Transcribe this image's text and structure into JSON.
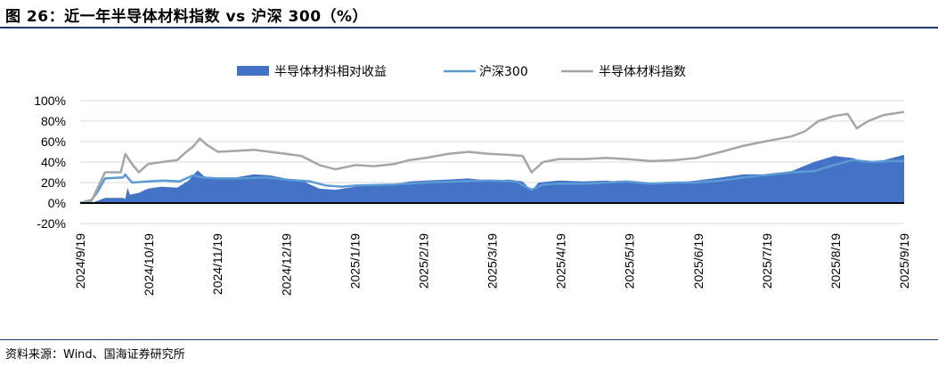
{
  "title": "图 26：近一年半导体材料指数 vs 沪深 300（%）",
  "source": "资料来源：Wind、国海证券研究所",
  "chart_data": {
    "type": "area+line",
    "yaxis": {
      "min": -20,
      "max": 100,
      "step": 20,
      "tick_labels": [
        "-20%",
        "0%",
        "20%",
        "40%",
        "60%",
        "80%",
        "100%"
      ]
    },
    "xaxis": {
      "start": "2024-09-19",
      "end": "2025-09-19",
      "tick_labels": [
        "2024/9/19",
        "2024/10/19",
        "2024/11/19",
        "2024/12/19",
        "2025/1/19",
        "2025/2/19",
        "2025/3/19",
        "2025/4/19",
        "2025/5/19",
        "2025/6/19",
        "2025/7/19",
        "2025/8/19",
        "2025/9/19"
      ]
    },
    "grid": true,
    "legend_position": "top",
    "series": [
      {
        "name": "半导体材料相对收益",
        "kind": "area",
        "color": "#4472c4",
        "points": [
          [
            "2024-09-19",
            0
          ],
          [
            "2024-09-24",
            0
          ],
          [
            "2024-09-30",
            5
          ],
          [
            "2024-10-08",
            5
          ],
          [
            "2024-10-09",
            4
          ],
          [
            "2024-10-10",
            15
          ],
          [
            "2024-10-11",
            8
          ],
          [
            "2024-10-15",
            10
          ],
          [
            "2024-10-19",
            14
          ],
          [
            "2024-10-25",
            16
          ],
          [
            "2024-11-01",
            15
          ],
          [
            "2024-11-06",
            22
          ],
          [
            "2024-11-10",
            32
          ],
          [
            "2024-11-13",
            26
          ],
          [
            "2024-11-19",
            24
          ],
          [
            "2024-11-27",
            25
          ],
          [
            "2024-12-05",
            28
          ],
          [
            "2024-12-12",
            27
          ],
          [
            "2024-12-19",
            24
          ],
          [
            "2024-12-26",
            22
          ],
          [
            "2025-01-03",
            14
          ],
          [
            "2025-01-10",
            13
          ],
          [
            "2025-01-19",
            16
          ],
          [
            "2025-01-27",
            18
          ],
          [
            "2025-02-05",
            18
          ],
          [
            "2025-02-12",
            21
          ],
          [
            "2025-02-19",
            22
          ],
          [
            "2025-03-01",
            23
          ],
          [
            "2025-03-10",
            24
          ],
          [
            "2025-03-19",
            22
          ],
          [
            "2025-03-28",
            23
          ],
          [
            "2025-04-03",
            21
          ],
          [
            "2025-04-07",
            12
          ],
          [
            "2025-04-10",
            20
          ],
          [
            "2025-04-19",
            22
          ],
          [
            "2025-04-30",
            21
          ],
          [
            "2025-05-10",
            22
          ],
          [
            "2025-05-19",
            20
          ],
          [
            "2025-05-30",
            19
          ],
          [
            "2025-06-10",
            20
          ],
          [
            "2025-06-19",
            22
          ],
          [
            "2025-06-30",
            25
          ],
          [
            "2025-07-10",
            28
          ],
          [
            "2025-07-19",
            28
          ],
          [
            "2025-07-31",
            31
          ],
          [
            "2025-08-10",
            40
          ],
          [
            "2025-08-19",
            46
          ],
          [
            "2025-08-27",
            44
          ],
          [
            "2025-09-02",
            40
          ],
          [
            "2025-09-10",
            42
          ],
          [
            "2025-09-19",
            47
          ]
        ]
      },
      {
        "name": "沪深300",
        "kind": "line",
        "color": "#5b9bd5",
        "points": [
          [
            "2024-09-19",
            0
          ],
          [
            "2024-09-24",
            3
          ],
          [
            "2024-09-27",
            12
          ],
          [
            "2024-09-30",
            24
          ],
          [
            "2024-10-08",
            25
          ],
          [
            "2024-10-09",
            28
          ],
          [
            "2024-10-10",
            25
          ],
          [
            "2024-10-12",
            20
          ],
          [
            "2024-10-19",
            21
          ],
          [
            "2024-10-26",
            22
          ],
          [
            "2024-11-02",
            21
          ],
          [
            "2024-11-08",
            27
          ],
          [
            "2024-11-12",
            25
          ],
          [
            "2024-11-19",
            24
          ],
          [
            "2024-11-29",
            24
          ],
          [
            "2024-12-10",
            25
          ],
          [
            "2024-12-19",
            23
          ],
          [
            "2024-12-30",
            21
          ],
          [
            "2025-01-06",
            17
          ],
          [
            "2025-01-13",
            16
          ],
          [
            "2025-01-19",
            17
          ],
          [
            "2025-02-05",
            18
          ],
          [
            "2025-02-19",
            20
          ],
          [
            "2025-03-05",
            21
          ],
          [
            "2025-03-19",
            22
          ],
          [
            "2025-03-31",
            21
          ],
          [
            "2025-04-07",
            13
          ],
          [
            "2025-04-12",
            18
          ],
          [
            "2025-04-19",
            19
          ],
          [
            "2025-05-01",
            19
          ],
          [
            "2025-05-19",
            21
          ],
          [
            "2025-05-30",
            19
          ],
          [
            "2025-06-10",
            20
          ],
          [
            "2025-06-19",
            20
          ],
          [
            "2025-06-30",
            22
          ],
          [
            "2025-07-10",
            25
          ],
          [
            "2025-07-19",
            27
          ],
          [
            "2025-07-31",
            30
          ],
          [
            "2025-08-10",
            31
          ],
          [
            "2025-08-19",
            37
          ],
          [
            "2025-08-27",
            42
          ],
          [
            "2025-09-05",
            40
          ],
          [
            "2025-09-12",
            41
          ],
          [
            "2025-09-19",
            41
          ]
        ]
      },
      {
        "name": "半导体材料指数",
        "kind": "line",
        "color": "#a5a5a5",
        "points": [
          [
            "2024-09-19",
            0
          ],
          [
            "2024-09-24",
            2
          ],
          [
            "2024-09-30",
            30
          ],
          [
            "2024-10-07",
            30
          ],
          [
            "2024-10-09",
            48
          ],
          [
            "2024-10-12",
            38
          ],
          [
            "2024-10-15",
            30
          ],
          [
            "2024-10-19",
            38
          ],
          [
            "2024-10-25",
            40
          ],
          [
            "2024-11-01",
            42
          ],
          [
            "2024-11-05",
            50
          ],
          [
            "2024-11-08",
            55
          ],
          [
            "2024-11-11",
            63
          ],
          [
            "2024-11-14",
            57
          ],
          [
            "2024-11-19",
            50
          ],
          [
            "2024-11-28",
            51
          ],
          [
            "2024-12-05",
            52
          ],
          [
            "2024-12-12",
            50
          ],
          [
            "2024-12-19",
            48
          ],
          [
            "2024-12-26",
            46
          ],
          [
            "2025-01-03",
            37
          ],
          [
            "2025-01-10",
            33
          ],
          [
            "2025-01-19",
            37
          ],
          [
            "2025-01-27",
            36
          ],
          [
            "2025-02-05",
            38
          ],
          [
            "2025-02-12",
            42
          ],
          [
            "2025-02-19",
            44
          ],
          [
            "2025-03-01",
            48
          ],
          [
            "2025-03-10",
            50
          ],
          [
            "2025-03-19",
            48
          ],
          [
            "2025-03-28",
            47
          ],
          [
            "2025-04-03",
            46
          ],
          [
            "2025-04-07",
            30
          ],
          [
            "2025-04-12",
            40
          ],
          [
            "2025-04-19",
            43
          ],
          [
            "2025-04-30",
            43
          ],
          [
            "2025-05-10",
            44
          ],
          [
            "2025-05-19",
            43
          ],
          [
            "2025-05-30",
            41
          ],
          [
            "2025-06-10",
            42
          ],
          [
            "2025-06-19",
            44
          ],
          [
            "2025-06-30",
            50
          ],
          [
            "2025-07-10",
            56
          ],
          [
            "2025-07-19",
            60
          ],
          [
            "2025-07-31",
            65
          ],
          [
            "2025-08-06",
            70
          ],
          [
            "2025-08-12",
            80
          ],
          [
            "2025-08-19",
            85
          ],
          [
            "2025-08-25",
            87
          ],
          [
            "2025-08-29",
            73
          ],
          [
            "2025-09-03",
            80
          ],
          [
            "2025-09-10",
            86
          ],
          [
            "2025-09-19",
            89
          ]
        ]
      }
    ]
  }
}
